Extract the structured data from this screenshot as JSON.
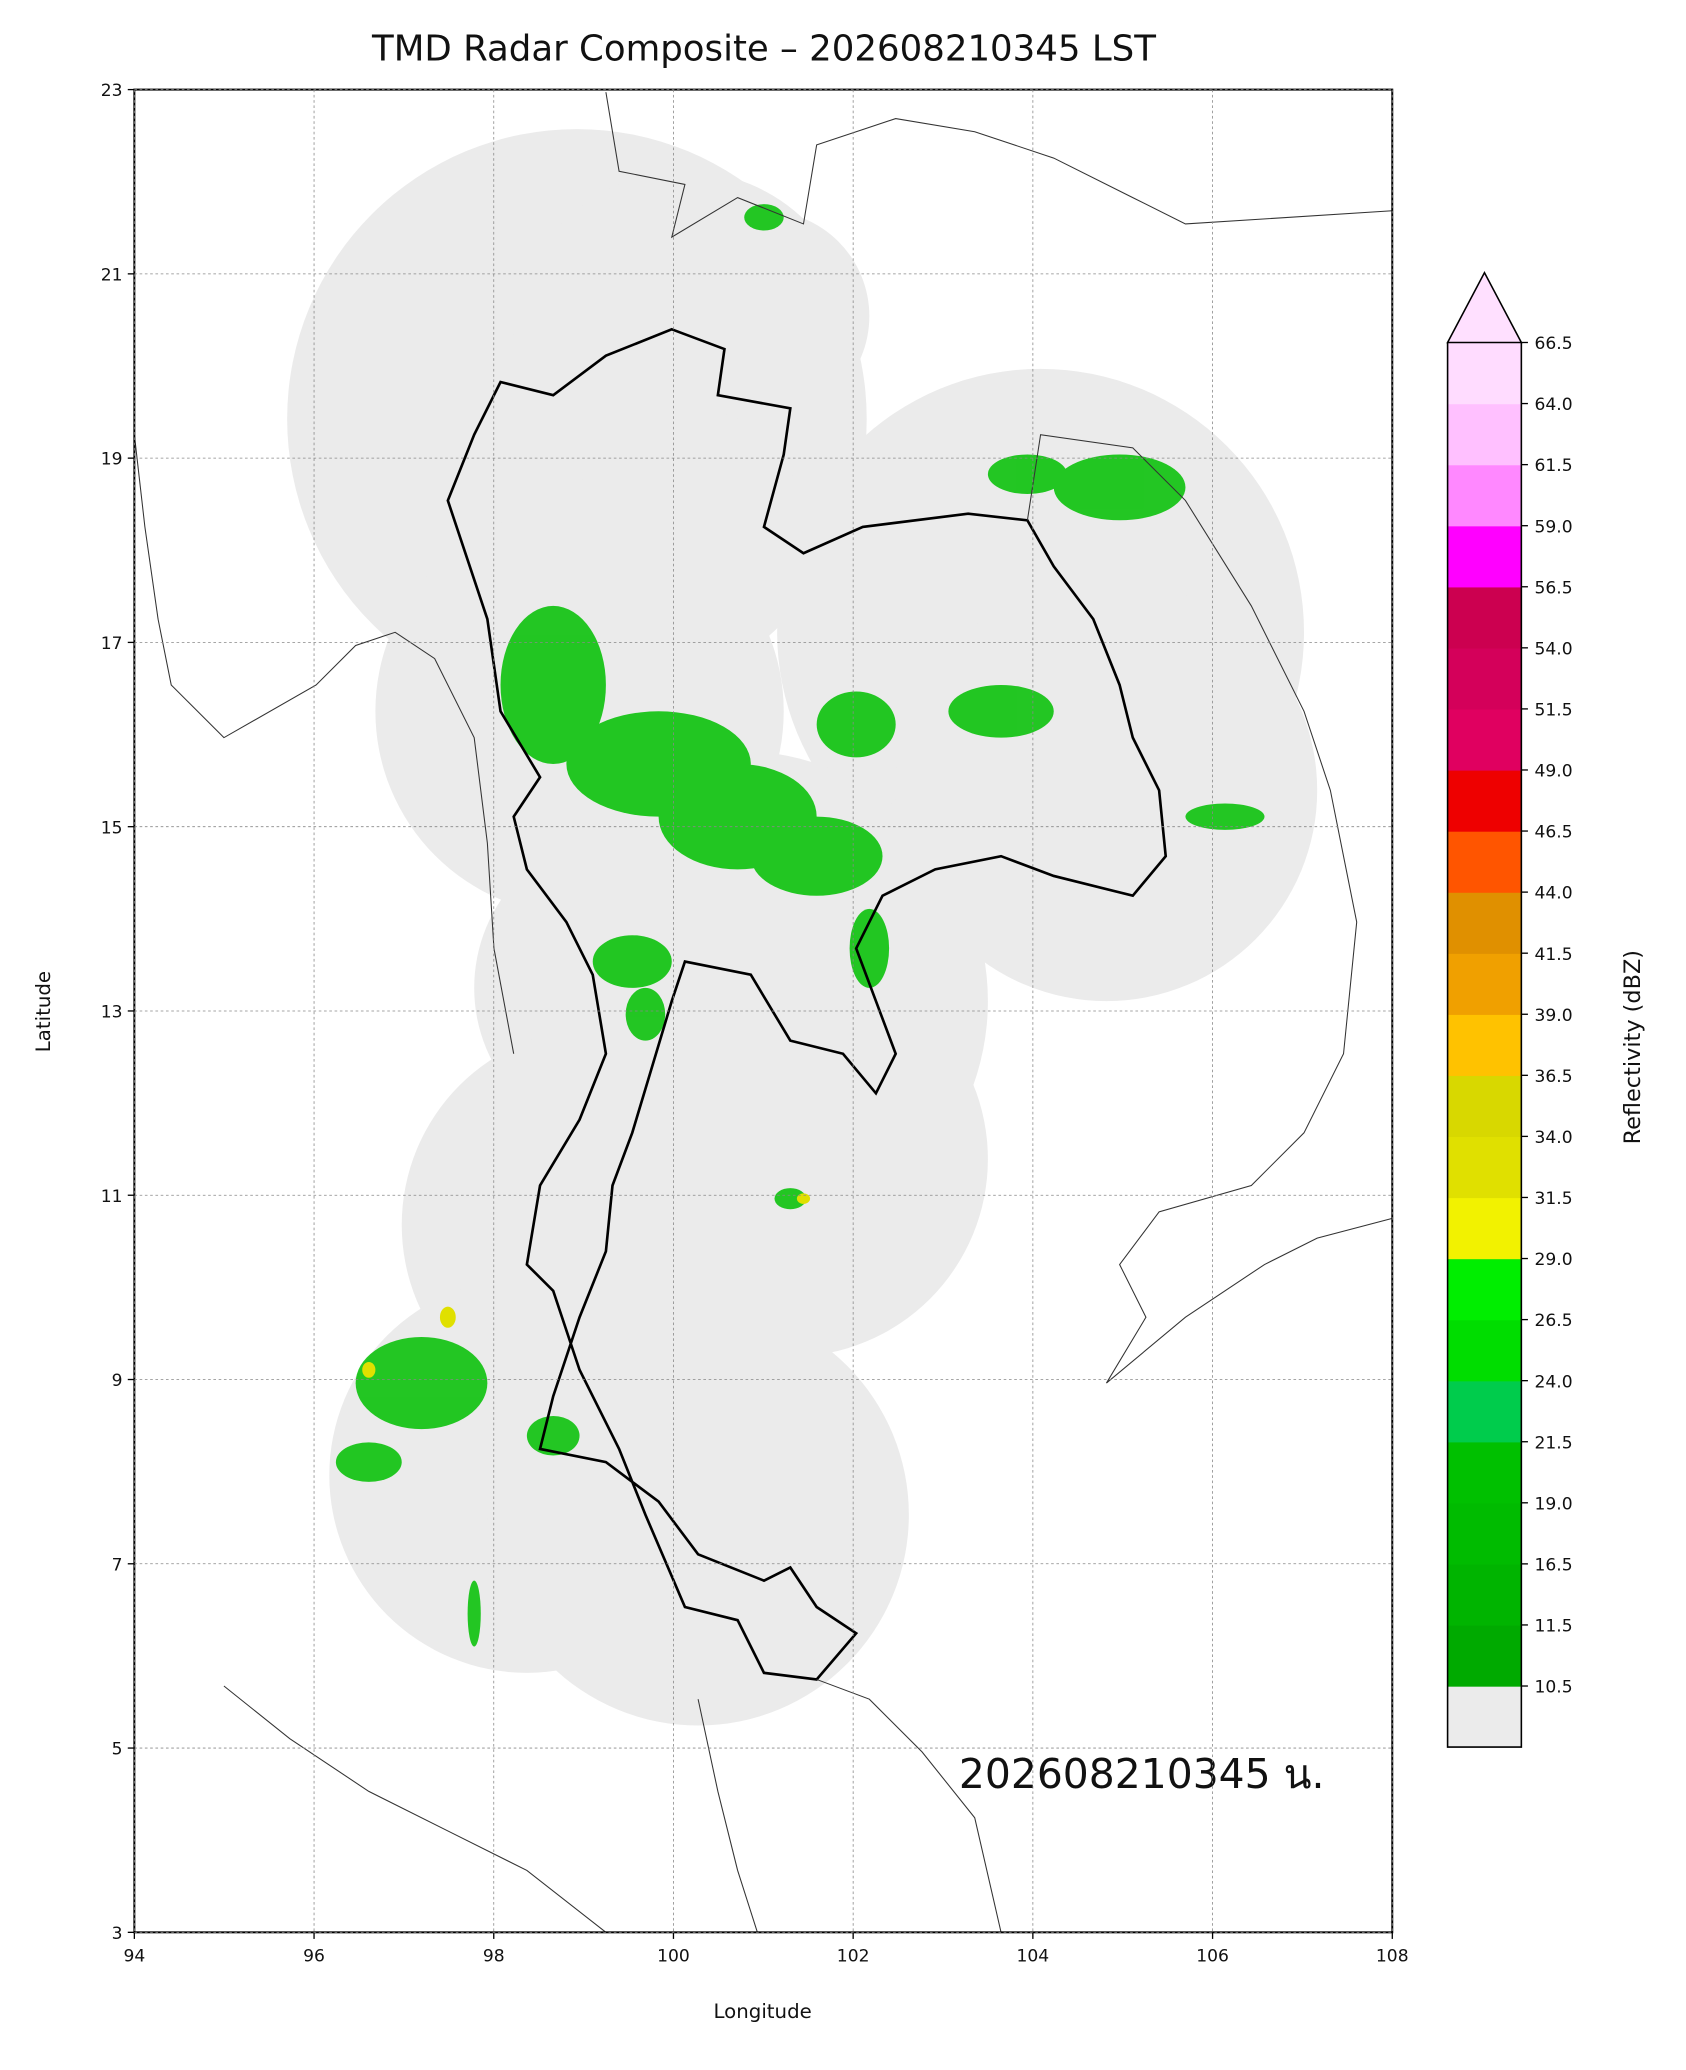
{
  "map": {
    "title": "TMD Radar Composite – 202608210345 LST",
    "xlabel": "Longitude",
    "ylabel": "Latitude",
    "xlim": [
      94,
      108
    ],
    "ylim": [
      3,
      23
    ],
    "xticks": [
      94,
      96,
      98,
      100,
      102,
      104,
      106,
      108
    ],
    "yticks": [
      3,
      5,
      7,
      9,
      11,
      13,
      15,
      17,
      19,
      21,
      23
    ],
    "grid": true,
    "annotation": "202608210345 น.",
    "colorbar": {
      "label": "Reflectivity (dBZ)",
      "ticks": [
        10.5,
        11.5,
        16.5,
        {
          "value": 19,
          "label": "19.0"
        },
        21.5,
        {
          "value": 24,
          "label": "24.0"
        },
        26.5,
        {
          "value": 29,
          "label": "29.0"
        },
        31.5,
        {
          "value": 34,
          "label": "34.0"
        },
        36.5,
        {
          "value": 39,
          "label": "39.0"
        },
        41.5,
        {
          "value": 44,
          "label": "44.0"
        },
        46.5,
        {
          "value": 49,
          "label": "49.0"
        },
        51.5,
        {
          "value": 54,
          "label": "54.0"
        },
        56.5,
        {
          "value": 59,
          "label": "59.0"
        },
        61.5,
        {
          "value": 64,
          "label": "64.0"
        },
        66.5
      ],
      "colors": [
        "#00aa00",
        "#00b400",
        "#00bb00",
        "#00c000",
        "#00cc4c",
        "#00dd00",
        "#00ee00",
        "#f2f200",
        "#e0e000",
        "#d8d800",
        "#ffc200",
        "#f0a000",
        "#e09000",
        "#ff5500",
        "#ee0000",
        "#e00060",
        "#d4005a",
        "#cc0050",
        "#ff00ff",
        "#ff88ff",
        "#ffc0ff",
        "#ffdcff"
      ],
      "under_color": "#ebebeb",
      "over_color": "#ffe0ff"
    }
  }
}
